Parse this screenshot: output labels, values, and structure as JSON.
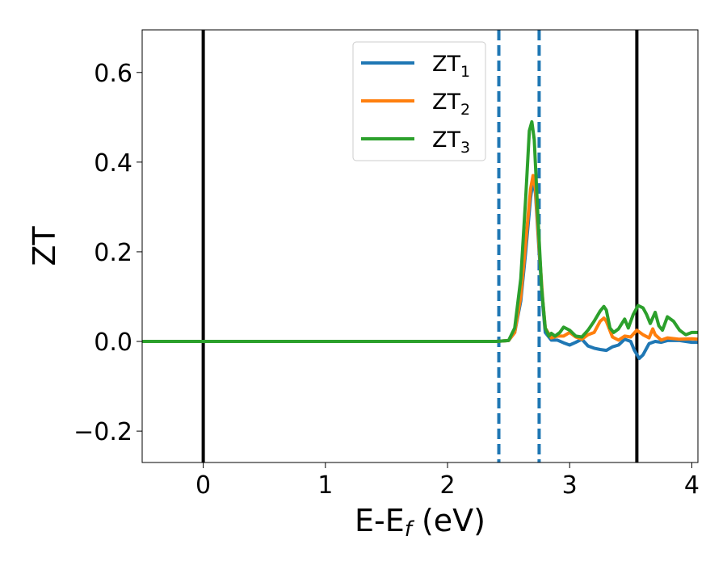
{
  "chart_data": {
    "type": "line",
    "xlabel": {
      "main": "E-E",
      "sub": "f",
      "unit": " (eV)"
    },
    "ylabel": "ZT",
    "xlim": [
      -0.5,
      4.05
    ],
    "ylim": [
      -0.27,
      0.695
    ],
    "x_ticks": [
      0,
      1,
      2,
      3,
      4
    ],
    "y_ticks": [
      -0.2,
      0.0,
      0.2,
      0.4,
      0.6
    ],
    "x_tick_labels": [
      "0",
      "1",
      "2",
      "3",
      "4"
    ],
    "y_tick_labels": [
      "−0.2",
      "0.0",
      "0.2",
      "0.4",
      "0.6"
    ],
    "grid": false,
    "legend_position": "top-center",
    "vertical_lines": [
      {
        "x": 0.0,
        "style": "solid",
        "color": "#000000"
      },
      {
        "x": 3.55,
        "style": "solid",
        "color": "#000000"
      },
      {
        "x": 2.42,
        "style": "dashed",
        "color": "#1f77b4"
      },
      {
        "x": 2.75,
        "style": "dashed",
        "color": "#1f77b4"
      }
    ],
    "series": [
      {
        "name": "ZT",
        "subscript": "1",
        "color": "#1f77b4",
        "points": [
          [
            -0.5,
            0
          ],
          [
            2.4,
            0
          ],
          [
            2.5,
            0.002
          ],
          [
            2.55,
            0.02
          ],
          [
            2.6,
            0.09
          ],
          [
            2.64,
            0.2
          ],
          [
            2.68,
            0.32
          ],
          [
            2.7,
            0.36
          ],
          [
            2.72,
            0.33
          ],
          [
            2.75,
            0.2
          ],
          [
            2.78,
            0.08
          ],
          [
            2.8,
            0.02
          ],
          [
            2.85,
            0.003
          ],
          [
            2.9,
            0.003
          ],
          [
            2.95,
            -0.003
          ],
          [
            3.0,
            -0.008
          ],
          [
            3.05,
            -0.002
          ],
          [
            3.1,
            0.005
          ],
          [
            3.15,
            -0.01
          ],
          [
            3.2,
            -0.015
          ],
          [
            3.25,
            -0.018
          ],
          [
            3.3,
            -0.02
          ],
          [
            3.35,
            -0.012
          ],
          [
            3.4,
            -0.008
          ],
          [
            3.45,
            0.005
          ],
          [
            3.5,
            0.0
          ],
          [
            3.53,
            -0.02
          ],
          [
            3.57,
            -0.038
          ],
          [
            3.6,
            -0.03
          ],
          [
            3.65,
            -0.005
          ],
          [
            3.7,
            0.0
          ],
          [
            3.75,
            -0.002
          ],
          [
            3.8,
            0.002
          ],
          [
            3.9,
            0.002
          ],
          [
            4.0,
            -0.002
          ],
          [
            4.05,
            -0.002
          ]
        ]
      },
      {
        "name": "ZT",
        "subscript": "2",
        "color": "#ff7f0e",
        "points": [
          [
            -0.5,
            0
          ],
          [
            2.4,
            0
          ],
          [
            2.5,
            0.002
          ],
          [
            2.55,
            0.02
          ],
          [
            2.6,
            0.1
          ],
          [
            2.64,
            0.22
          ],
          [
            2.68,
            0.34
          ],
          [
            2.7,
            0.37
          ],
          [
            2.72,
            0.34
          ],
          [
            2.75,
            0.21
          ],
          [
            2.78,
            0.09
          ],
          [
            2.8,
            0.03
          ],
          [
            2.85,
            0.008
          ],
          [
            2.9,
            0.012
          ],
          [
            2.95,
            0.012
          ],
          [
            3.0,
            0.02
          ],
          [
            3.05,
            0.01
          ],
          [
            3.1,
            0.005
          ],
          [
            3.15,
            0.015
          ],
          [
            3.2,
            0.02
          ],
          [
            3.25,
            0.045
          ],
          [
            3.28,
            0.052
          ],
          [
            3.3,
            0.045
          ],
          [
            3.35,
            0.01
          ],
          [
            3.4,
            0.003
          ],
          [
            3.45,
            0.012
          ],
          [
            3.5,
            0.01
          ],
          [
            3.55,
            0.025
          ],
          [
            3.6,
            0.015
          ],
          [
            3.65,
            0.008
          ],
          [
            3.68,
            0.028
          ],
          [
            3.7,
            0.015
          ],
          [
            3.75,
            0.003
          ],
          [
            3.8,
            0.008
          ],
          [
            3.9,
            0.005
          ],
          [
            4.0,
            0.006
          ],
          [
            4.05,
            0.005
          ]
        ]
      },
      {
        "name": "ZT",
        "subscript": "3",
        "color": "#2ca02c",
        "points": [
          [
            -0.5,
            0
          ],
          [
            2.4,
            0
          ],
          [
            2.5,
            0.002
          ],
          [
            2.55,
            0.03
          ],
          [
            2.6,
            0.14
          ],
          [
            2.64,
            0.32
          ],
          [
            2.67,
            0.47
          ],
          [
            2.69,
            0.49
          ],
          [
            2.71,
            0.45
          ],
          [
            2.74,
            0.28
          ],
          [
            2.77,
            0.12
          ],
          [
            2.8,
            0.03
          ],
          [
            2.83,
            0.012
          ],
          [
            2.85,
            0.018
          ],
          [
            2.88,
            0.012
          ],
          [
            2.92,
            0.02
          ],
          [
            2.95,
            0.032
          ],
          [
            3.0,
            0.025
          ],
          [
            3.05,
            0.012
          ],
          [
            3.1,
            0.01
          ],
          [
            3.15,
            0.025
          ],
          [
            3.2,
            0.045
          ],
          [
            3.25,
            0.068
          ],
          [
            3.28,
            0.078
          ],
          [
            3.3,
            0.07
          ],
          [
            3.33,
            0.03
          ],
          [
            3.36,
            0.02
          ],
          [
            3.4,
            0.028
          ],
          [
            3.45,
            0.05
          ],
          [
            3.48,
            0.03
          ],
          [
            3.52,
            0.06
          ],
          [
            3.56,
            0.08
          ],
          [
            3.6,
            0.075
          ],
          [
            3.63,
            0.06
          ],
          [
            3.66,
            0.04
          ],
          [
            3.7,
            0.065
          ],
          [
            3.73,
            0.035
          ],
          [
            3.76,
            0.025
          ],
          [
            3.8,
            0.055
          ],
          [
            3.85,
            0.045
          ],
          [
            3.9,
            0.025
          ],
          [
            3.95,
            0.015
          ],
          [
            4.0,
            0.02
          ],
          [
            4.05,
            0.02
          ]
        ]
      }
    ]
  }
}
